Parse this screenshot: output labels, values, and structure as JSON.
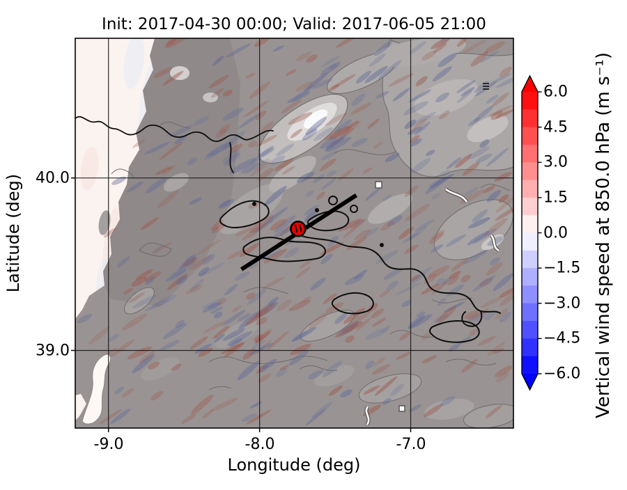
{
  "title": "Init: 2017-04-30 00:00; Valid: 2017-06-05 21:00",
  "axes": {
    "xlabel": "Longitude (deg)",
    "ylabel": "Latitude (deg)",
    "xticks": [
      {
        "value": -9.0,
        "label": "-9.0"
      },
      {
        "value": -8.0,
        "label": "-8.0"
      },
      {
        "value": -7.0,
        "label": "-7.0"
      }
    ],
    "yticks": [
      {
        "value": 40.0,
        "label": "40.0"
      },
      {
        "value": 39.0,
        "label": "39.0"
      }
    ]
  },
  "colorbar": {
    "label": "Vertical wind speed at 850.0 hPa (m s⁻¹)",
    "ticks": [
      "6.0",
      "4.5",
      "3.0",
      "1.5",
      "0.0",
      "−1.5",
      "−3.0",
      "−4.5",
      "−6.0"
    ],
    "tick_values": [
      6.0,
      4.5,
      3.0,
      1.5,
      0.0,
      -1.5,
      -3.0,
      -4.5,
      -6.0
    ],
    "vmin": -6.0,
    "vmax": 6.0,
    "band_step": 0.75,
    "band_colors_top_to_bottom": [
      "#ff1010",
      "#ff3030",
      "#ff5050",
      "#ff7070",
      "#ff8f8f",
      "#ffafaf",
      "#ffcfcf",
      "#ffefef",
      "#efefff",
      "#cfcfff",
      "#afafff",
      "#8f8fff",
      "#7070ff",
      "#5050ff",
      "#3030ff",
      "#1010ff"
    ],
    "over_color": "#ff0000",
    "under_color": "#0000ff"
  },
  "chart_data": {
    "type": "heatmap",
    "title": "Init: 2017-04-30 00:00; Valid: 2017-06-05 21:00",
    "xlabel": "Longitude (deg)",
    "ylabel": "Latitude (deg)",
    "xlim": [
      -9.22,
      -6.32
    ],
    "ylim": [
      38.55,
      40.81
    ],
    "grid": true,
    "grid_lons": [
      -9.0,
      -8.0,
      -7.0
    ],
    "grid_lats": [
      40.0,
      39.0
    ],
    "colorbar_label": "Vertical wind speed at 850.0 hPa (m s⁻¹)",
    "colorbar_range": [
      -6.0,
      6.0
    ],
    "field": "vertical wind speed at 850.0 hPa shown as red (up) / blue (down) wave streaks over gray terrain shading",
    "cross_section_line": {
      "from_lonlat": [
        -8.12,
        39.47
      ],
      "to_lonlat": [
        -7.36,
        39.9
      ]
    },
    "marker": {
      "lonlat": [
        -7.745,
        39.705
      ],
      "color": "#e60000",
      "shape": "filled circle, black edge"
    }
  },
  "map_colors": {
    "ocean": "#fbf3f0",
    "ocean_streak_pink": "#f6e0da",
    "ocean_streak_blue": "#e4e9f6",
    "land": "#999493",
    "land_dark_overlay": "rgba(55,50,46,0.10)",
    "terrain_contour_gray": "#6f6b6a",
    "contour_black": "#0d0d0d",
    "streak_red": "158,90,78",
    "streak_blue": "100,108,152",
    "peak_white": "#fafafa",
    "grid_line": "#141414",
    "frame": "#000000"
  }
}
